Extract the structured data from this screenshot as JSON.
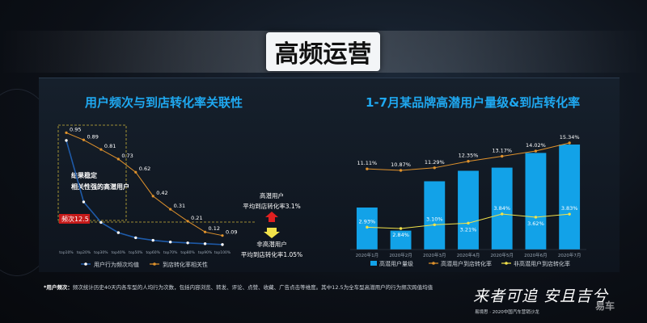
{
  "page": {
    "title": "高频运营",
    "footnote_prefix": "*用户频次：",
    "footnote_text": "频次统计历史40天内各车型的人均行为次数，包括内容浏览、转发、评论、点赞、收藏、广告点击等维度。其中12.5为全车型高潜用户的行为频次跨值均值",
    "logo_text": "来者可追 安且吉兮",
    "logo_sub": "易境思 · 2020中国汽车营销沙龙",
    "watermark": "易车"
  },
  "colors": {
    "accent": "#1fa8f0",
    "bar": "#12a2e8",
    "line_orange": "#e0922c",
    "line_yellow": "#f2e24a",
    "freq_line": "#1e5aa8",
    "threshold_red": "#e02020"
  },
  "chart_data": [
    {
      "type": "line",
      "title": "用户频次与到店转化率关联性",
      "categories": [
        "top10%",
        "top20%",
        "top30%",
        "top40%",
        "top50%",
        "top60%",
        "top70%",
        "top80%",
        "top90%",
        "top100%"
      ],
      "series": [
        {
          "name": "用户行为频次均值",
          "values": [
            62,
            26,
            14,
            8,
            5,
            3.5,
            2.5,
            2,
            1.5,
            1
          ]
        },
        {
          "name": "到店转化率相关性",
          "values": [
            0.95,
            0.89,
            0.81,
            0.73,
            0.62,
            0.42,
            0.31,
            0.21,
            0.12,
            0.09
          ]
        }
      ],
      "data_labels": [
        "0.95",
        "0.89",
        "0.81",
        "0.73",
        "0.62",
        "0.42",
        "0.31",
        "0.21",
        "0.12",
        "0.09"
      ],
      "threshold": {
        "label": "频次12.5",
        "value": 12.5
      },
      "box_annotation": [
        "结果稳定",
        "相关性强的高潜用户"
      ],
      "callout_high": {
        "line1": "高潜用户",
        "line2": "平均到店转化率3.1%"
      },
      "callout_low": {
        "line1": "非高潜用户",
        "line2": "平均到店转化率1.05%"
      },
      "ylim_freq": [
        0,
        70
      ],
      "ylim_corr": [
        0,
        1
      ],
      "grid": false,
      "legend": "bottom"
    },
    {
      "type": "bar",
      "title": "1-7月某品牌高潜用户量级&到店转化率",
      "categories": [
        "2020年1月",
        "2020年2月",
        "2020年3月",
        "2020年4月",
        "2020年5月",
        "2020年6月",
        "2020年7月"
      ],
      "series": [
        {
          "name": "高潜用户量级",
          "values": [
            40,
            18,
            65,
            75,
            78,
            92,
            100
          ]
        },
        {
          "name": "高潜用户到店转化率",
          "values": [
            11.11,
            10.87,
            11.29,
            12.35,
            13.17,
            14.02,
            15.34
          ],
          "labels": [
            "11.11%",
            "10.87%",
            "11.29%",
            "12.35%",
            "13.17%",
            "14.02%",
            "15.34%"
          ]
        },
        {
          "name": "非高潜用户到店转化率",
          "values": [
            2.93,
            2.84,
            3.1,
            3.21,
            3.84,
            3.62,
            3.83
          ],
          "labels": [
            "2.93%",
            "2.84%",
            "3.10%",
            "3.21%",
            "3.84%",
            "3.62%",
            "3.83%"
          ]
        }
      ],
      "grid": false,
      "legend": "bottom"
    }
  ]
}
